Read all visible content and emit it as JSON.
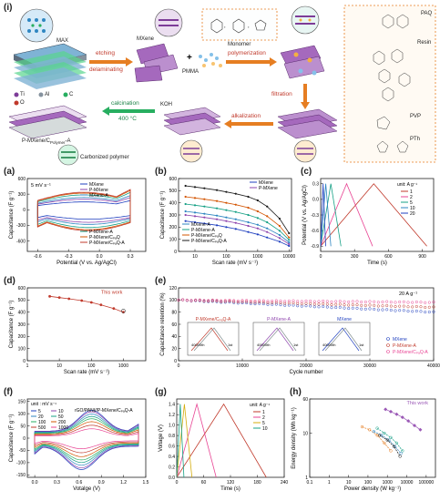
{
  "figure_label": "(i)",
  "scheme": {
    "MAX": "MAX",
    "MXene": "MXene",
    "Monomer": "Monomer",
    "PMMA": "PMMA",
    "etching": "etching",
    "delaminating": "delaminating",
    "polymerization": "polymerization",
    "filtration": "filtration",
    "alkalization": "alkalization",
    "calcination": "calcination",
    "temp": "400 °C",
    "KOH": "KOH",
    "product": "P-MXene/C",
    "product_sub": "Polymer",
    "product_suffix": "-A",
    "carbonized": "Carbonized polymer",
    "legend_ti": "Ti",
    "legend_al": "Al",
    "legend_c": "C",
    "legend_o": "O",
    "polymers": [
      "PAQ",
      "Resin",
      "PVP",
      "PTh"
    ]
  },
  "panel_labels": {
    "a": "(a)",
    "b": "(b)",
    "c": "(c)",
    "d": "(d)",
    "e": "(e)",
    "f": "(f)",
    "g": "(g)",
    "h": "(h)"
  },
  "chart_data": [
    {
      "id": "a",
      "type": "line",
      "xlabel": "Potential (V vs. Ag/AgCl)",
      "ylabel": "Capacitance (F g⁻¹)",
      "annotation": "5 mV s⁻¹",
      "xlim": [
        -0.7,
        0.45
      ],
      "ylim": [
        -800,
        600
      ],
      "xticks": [
        -0.6,
        -0.3,
        0.0,
        0.3
      ],
      "yticks": [
        -600,
        -300,
        0,
        300,
        600
      ],
      "xtick_labels": [
        "-0.6",
        "-0.3",
        "0.0",
        "0.3"
      ],
      "ytick_labels": [
        "-600",
        "-300",
        "0",
        "300",
        "600"
      ],
      "series": [
        {
          "name": "MXene",
          "color": "#1f3fbf",
          "scale": 0.45
        },
        {
          "name": "P-MXene",
          "color": "#8e44ad",
          "scale": 0.6
        },
        {
          "name": "MXene-A",
          "color": "#2e86c1",
          "scale": 0.7
        },
        {
          "name": "P-MXene-A",
          "color": "#16a085",
          "scale": 0.85
        },
        {
          "name": "P-MXene/CₚₐQ",
          "color": "#d35400",
          "scale": 0.95
        },
        {
          "name": "P-MXene/CₚₐQ-A",
          "color": "#c0392b",
          "scale": 1.0
        }
      ],
      "legend_upper": [
        "MXene",
        "P-MXene",
        "MXene-A"
      ],
      "legend_lower": [
        "P-MXene-A",
        "P-MXene/CₚₐQ",
        "P-MXene/CₚₐQ-A"
      ]
    },
    {
      "id": "b",
      "type": "line",
      "xscale": "log",
      "xlabel": "Scan rate (mV s⁻¹)",
      "ylabel": "Capacitance (F g⁻¹)",
      "xlim": [
        3,
        12000
      ],
      "ylim": [
        0,
        600
      ],
      "xticks": [
        10,
        100,
        1000,
        10000
      ],
      "yticks": [
        0,
        100,
        200,
        300,
        400,
        500,
        600
      ],
      "xtick_labels": [
        "10",
        "100",
        "1000",
        "10000"
      ],
      "ytick_labels": [
        "0",
        "100",
        "200",
        "300",
        "400",
        "500",
        "600"
      ],
      "x": [
        5,
        10,
        20,
        50,
        100,
        200,
        500,
        1000,
        2000,
        5000,
        10000
      ],
      "series": [
        {
          "name": "MXene",
          "color": "#1f3fbf",
          "values": [
            250,
            240,
            230,
            215,
            200,
            185,
            160,
            140,
            115,
            80,
            45
          ]
        },
        {
          "name": "P-MXene",
          "color": "#8e44ad",
          "values": [
            300,
            290,
            280,
            265,
            250,
            235,
            210,
            190,
            160,
            110,
            60
          ]
        },
        {
          "name": "MXene-A",
          "color": "#2e86c1",
          "values": [
            330,
            320,
            310,
            295,
            280,
            265,
            240,
            220,
            190,
            135,
            75
          ]
        },
        {
          "name": "P-MXene-A",
          "color": "#16a085",
          "values": [
            390,
            380,
            370,
            355,
            340,
            325,
            300,
            275,
            240,
            170,
            95
          ]
        },
        {
          "name": "P-MXene/CₚₐQ",
          "color": "#d35400",
          "values": [
            450,
            440,
            430,
            415,
            400,
            385,
            360,
            330,
            290,
            210,
            115
          ]
        },
        {
          "name": "P-MXene/CₚₐQ-A",
          "color": "#1a1a1a",
          "values": [
            540,
            530,
            520,
            505,
            490,
            475,
            450,
            420,
            370,
            270,
            150
          ]
        }
      ],
      "legend_upper": [
        "MXene",
        "P-MXene"
      ],
      "legend_lower": [
        "MXene-A",
        "P-MXene-A",
        "P-MXene/CₚₐQ",
        "P-MXene/CₚₐQ-A"
      ]
    },
    {
      "id": "c",
      "type": "line",
      "xlabel": "Time (s)",
      "ylabel": "Potential (V vs. Ag/AgCl)",
      "xlim": [
        0,
        1000
      ],
      "ylim": [
        -1.0,
        0.4
      ],
      "xticks": [
        0,
        300,
        600,
        900
      ],
      "yticks": [
        -0.9,
        -0.6,
        -0.3,
        0.0,
        0.3
      ],
      "xtick_labels": [
        "0",
        "300",
        "600",
        "900"
      ],
      "ytick_labels": [
        "-0.9",
        "-0.6",
        "-0.3",
        "0.0",
        "0.3"
      ],
      "legend_title": "unit: A g⁻¹",
      "series": [
        {
          "name": "1",
          "color": "#c0392b",
          "t_peak": 470,
          "t_end": 940
        },
        {
          "name": "2",
          "color": "#e84393",
          "t_peak": 230,
          "t_end": 460
        },
        {
          "name": "5",
          "color": "#16a085",
          "t_peak": 90,
          "t_end": 180
        },
        {
          "name": "10",
          "color": "#2e86c1",
          "t_peak": 45,
          "t_end": 90
        },
        {
          "name": "20",
          "color": "#1f3fbf",
          "t_peak": 22,
          "t_end": 44
        }
      ]
    },
    {
      "id": "d",
      "type": "scatter",
      "xscale": "log",
      "xlabel": "Scan rate (mV s⁻¹)",
      "ylabel": "Capacitance (F g⁻¹)",
      "annotation": "This work",
      "xlim": [
        1,
        5000
      ],
      "ylim": [
        0,
        600
      ],
      "xticks": [
        1,
        10,
        100,
        1000
      ],
      "yticks": [
        0,
        100,
        200,
        300,
        400,
        500,
        600
      ],
      "xtick_labels": [
        "1",
        "10",
        "100",
        "1000"
      ],
      "ytick_labels": [
        "0",
        "100",
        "200",
        "300",
        "400",
        "500",
        "600"
      ],
      "series": [
        {
          "name": "This work",
          "color": "#c0392b",
          "x": [
            5,
            10,
            20,
            50,
            100,
            200,
            500,
            1000
          ],
          "values": [
            530,
            520,
            510,
            495,
            480,
            460,
            430,
            400
          ]
        },
        {
          "name": "",
          "color": "#333333",
          "x": [
            1000
          ],
          "values": [
            410
          ]
        }
      ]
    },
    {
      "id": "e",
      "type": "scatter",
      "xlabel": "Cycle number",
      "ylabel": "Capacitance retention (%)",
      "annotation": "20 A g⁻¹",
      "xlim": [
        0,
        40000
      ],
      "ylim": [
        0,
        120
      ],
      "xticks": [
        0,
        10000,
        20000,
        30000,
        40000
      ],
      "yticks": [
        0,
        20,
        40,
        60,
        80,
        100,
        120
      ],
      "xtick_labels": [
        "0",
        "10000",
        "20000",
        "30000",
        "40000"
      ],
      "ytick_labels": [
        "0",
        "20",
        "40",
        "60",
        "80",
        "100",
        "120"
      ],
      "series": [
        {
          "name": "MXene",
          "color": "#1f3fbf",
          "start": 100,
          "end": 80
        },
        {
          "name": "P-MXene-A",
          "color": "#c0392b",
          "start": 100,
          "end": 88
        },
        {
          "name": "P-MXene/CₚₐQ-A",
          "color": "#e84393",
          "start": 100,
          "end": 96
        }
      ],
      "insets": [
        {
          "title": "P-MXene/CₚₐQ-A",
          "label": "40000th",
          "first": "1st",
          "ylabel": "Potential (V vs. Ag/AgCl)",
          "xlabel": "Time (s)",
          "color": "#c0392b"
        },
        {
          "title": "P-MXene-A",
          "label": "40000th",
          "first": "1st",
          "ylabel": "Potential (V vs. Ag/AgCl)",
          "xlabel": "Time (s)",
          "color": "#8e44ad"
        },
        {
          "title": "MXene",
          "label": "40000th",
          "first": "1st",
          "ylabel": "Potential (V vs. Ag/AgCl)",
          "xlabel": "Time (s)",
          "color": "#1f3fbf"
        }
      ]
    },
    {
      "id": "f",
      "type": "line",
      "xlabel": "Votalge (V)",
      "ylabel": "Capacitance (F g⁻¹)",
      "annotation": "rGO/PANI//P-MXene/CₚₐQ-A",
      "legend_title": "unit : mV s⁻¹",
      "xlim": [
        -0.1,
        1.5
      ],
      "ylim": [
        -160,
        160
      ],
      "xticks": [
        0.0,
        0.3,
        0.6,
        0.9,
        1.2,
        1.5
      ],
      "yticks": [
        -150,
        -100,
        -50,
        0,
        50,
        100,
        150
      ],
      "xtick_labels": [
        "0.0",
        "0.3",
        "0.6",
        "0.9",
        "1.2",
        "1.5"
      ],
      "ytick_labels": [
        "-150",
        "-100",
        "-50",
        "0",
        "50",
        "100",
        "150"
      ],
      "series": [
        {
          "name": "5",
          "color": "#1f3fbf",
          "scale": 0.95
        },
        {
          "name": "10",
          "color": "#8e44ad",
          "scale": 0.9
        },
        {
          "name": "20",
          "color": "#2e86c1",
          "scale": 0.82
        },
        {
          "name": "50",
          "color": "#16a085",
          "scale": 0.74
        },
        {
          "name": "100",
          "color": "#27ae60",
          "scale": 0.66
        },
        {
          "name": "200",
          "color": "#d35400",
          "scale": 0.56
        },
        {
          "name": "500",
          "color": "#c0392b",
          "scale": 0.44
        },
        {
          "name": "1000",
          "color": "#e84393",
          "scale": 0.32
        }
      ]
    },
    {
      "id": "g",
      "type": "line",
      "xlabel": "Time (s)",
      "ylabel": "Voltage (V)",
      "legend_title": "unit: A g⁻¹",
      "xlim": [
        0,
        240
      ],
      "ylim": [
        0,
        1.5
      ],
      "xticks": [
        0,
        60,
        120,
        180,
        240
      ],
      "yticks": [
        0.0,
        0.2,
        0.4,
        0.6,
        0.8,
        1.0,
        1.2,
        1.4
      ],
      "xtick_labels": [
        "0",
        "60",
        "120",
        "180",
        "240"
      ],
      "ytick_labels": [
        "0.0",
        "0.2",
        "0.4",
        "0.6",
        "0.8",
        "1.0",
        "1.2",
        "1.4"
      ],
      "series": [
        {
          "name": "1",
          "color": "#c0392b",
          "t_peak": 105,
          "t_end": 200
        },
        {
          "name": "2",
          "color": "#e84393",
          "t_peak": 45,
          "t_end": 88
        },
        {
          "name": "5",
          "color": "#d4ac0d",
          "t_peak": 17,
          "t_end": 34
        },
        {
          "name": "10",
          "color": "#16a085",
          "t_peak": 8,
          "t_end": 16
        }
      ]
    },
    {
      "id": "h",
      "type": "scatter",
      "xscale": "log",
      "yscale": "log",
      "xlabel": "Power density (W kg⁻¹)",
      "ylabel": "Energy density (Wh kg⁻¹)",
      "annotation": "This work",
      "xlim": [
        0.1,
        300000
      ],
      "ylim": [
        1,
        60
      ],
      "xticks": [
        0.1,
        1,
        10,
        100,
        1000,
        10000,
        100000
      ],
      "yticks": [
        1,
        10,
        60
      ],
      "xtick_labels": [
        "0.1",
        "1",
        "10",
        "100",
        "1000",
        "10000",
        "100000"
      ],
      "ytick_labels": [
        "1",
        "10",
        "60"
      ],
      "series": [
        {
          "name": "This work",
          "color": "#9b59b6",
          "x": [
            800,
            1500,
            3000,
            6000,
            12000,
            25000,
            50000
          ],
          "values": [
            35,
            31,
            27,
            23,
            19,
            15,
            12
          ]
        },
        {
          "name": "",
          "color": "#e67e22",
          "x": [
            50,
            120,
            300,
            700,
            1500
          ],
          "values": [
            14,
            12,
            9,
            6,
            4
          ]
        },
        {
          "name": "",
          "color": "#2e86c1",
          "x": [
            200,
            500,
            1200,
            2500,
            5000
          ],
          "values": [
            11,
            9,
            7,
            5,
            3.5
          ]
        },
        {
          "name": "",
          "color": "#16a085",
          "x": [
            300,
            700,
            1500,
            3000,
            6000
          ],
          "values": [
            13,
            10,
            8,
            6,
            4
          ]
        },
        {
          "name": "",
          "color": "#1a1a1a",
          "x": [
            400,
            1000,
            2200,
            4500
          ],
          "values": [
            9,
            7,
            5,
            3
          ]
        }
      ]
    }
  ]
}
